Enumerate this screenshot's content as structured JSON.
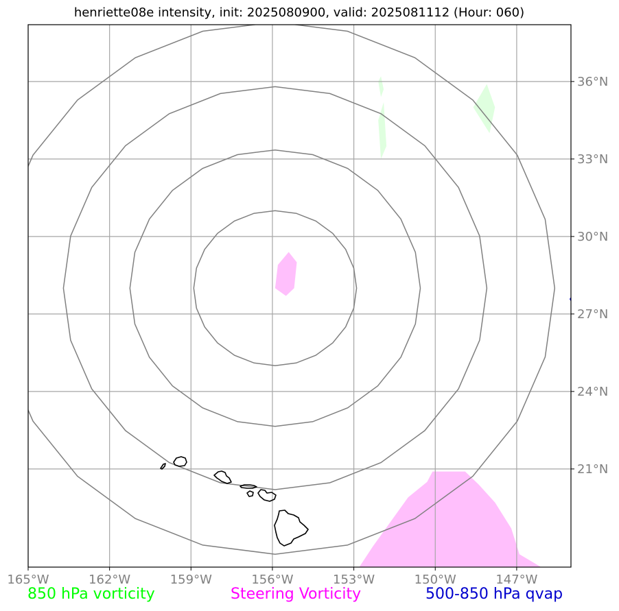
{
  "title": "henriette08e intensity, init: 2025080900, valid: 2025081112 (Hour: 060)",
  "map": {
    "projection": "lat-lon",
    "lon_range": [
      -165.0,
      -145.0
    ],
    "lat_range": [
      17.2,
      38.2
    ],
    "grid": true,
    "lon_ticks": [
      {
        "value": -165,
        "label": "165°W"
      },
      {
        "value": -162,
        "label": "162°W"
      },
      {
        "value": -159,
        "label": "159°W"
      },
      {
        "value": -156,
        "label": "156°W"
      },
      {
        "value": -153,
        "label": "153°W"
      },
      {
        "value": -150,
        "label": "150°W"
      },
      {
        "value": -147,
        "label": "147°W"
      }
    ],
    "lat_ticks": [
      {
        "value": 36,
        "label": "36°N"
      },
      {
        "value": 33,
        "label": "33°N"
      },
      {
        "value": 30,
        "label": "30°N"
      },
      {
        "value": 27,
        "label": "27°N"
      },
      {
        "value": 24,
        "label": "24°N"
      },
      {
        "value": 21,
        "label": "21°N"
      }
    ],
    "contours": {
      "center": [
        -155.9,
        28.0
      ],
      "radii_deg": [
        3.0,
        5.35,
        7.8,
        10.3
      ],
      "color": "#808080"
    },
    "steering_vorticity_regions": [
      [
        [
          -155.8,
          28.9
        ],
        [
          -155.4,
          29.4
        ],
        [
          -155.1,
          29.0
        ],
        [
          -155.2,
          28.0
        ],
        [
          -155.5,
          27.7
        ],
        [
          -155.9,
          28.0
        ]
      ],
      [
        [
          -152.8,
          17.2
        ],
        [
          -152.3,
          18.0
        ],
        [
          -151.0,
          19.9
        ],
        [
          -150.3,
          20.5
        ],
        [
          -150.1,
          20.9
        ],
        [
          -148.9,
          20.9
        ],
        [
          -148.4,
          20.4
        ],
        [
          -147.8,
          19.7
        ],
        [
          -147.2,
          18.7
        ],
        [
          -146.9,
          17.7
        ],
        [
          -146.1,
          17.2
        ]
      ]
    ],
    "low_level_vorticity_regions": [
      [
        [
          -152.1,
          36.0
        ],
        [
          -152.0,
          36.2
        ],
        [
          -151.9,
          35.7
        ],
        [
          -152.0,
          35.4
        ]
      ],
      [
        [
          -152.1,
          34.5
        ],
        [
          -151.9,
          35.2
        ],
        [
          -151.8,
          33.5
        ],
        [
          -152.0,
          33.0
        ]
      ],
      [
        [
          -148.6,
          35.0
        ],
        [
          -148.1,
          35.9
        ],
        [
          -147.8,
          35.0
        ],
        [
          -148.0,
          34.0
        ]
      ]
    ],
    "land_color": "#000000",
    "steering_color": "#ffbffc",
    "vorticity_color": "#dfffdf"
  },
  "legend": [
    {
      "label": "850 hPa vorticity",
      "color": "#00ff00"
    },
    {
      "label": "Steering Vorticity",
      "color": "#ff00ff"
    },
    {
      "label": "500-850 hPa qvap",
      "color": "#0000cd"
    }
  ]
}
